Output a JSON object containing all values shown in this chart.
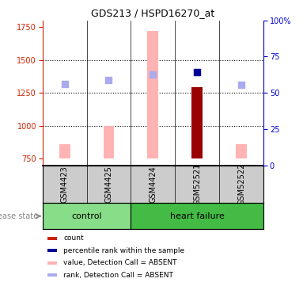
{
  "title": "GDS213 / HSPD16270_at",
  "samples": [
    "GSM4423",
    "GSM4425",
    "GSM4424",
    "GSM52521",
    "GSM52522"
  ],
  "ylim_left": [
    700,
    1800
  ],
  "ylim_right": [
    0,
    100
  ],
  "yticks_left": [
    750,
    1000,
    1250,
    1500,
    1750
  ],
  "ytick_labels_left": [
    "750",
    "1000",
    "1250",
    "1500",
    "1750"
  ],
  "yticks_right": [
    0,
    25,
    50,
    75,
    100
  ],
  "ytick_labels_right": [
    "0",
    "25",
    "50",
    "75",
    "100%"
  ],
  "bar_tops": [
    860,
    1000,
    1720,
    1290,
    860
  ],
  "bar_colors": [
    "#ffb3b3",
    "#ffb3b3",
    "#ffb3b3",
    "#990000",
    "#ffb3b3"
  ],
  "bar_base": 750,
  "bar_width": 0.25,
  "rank_y": [
    1315,
    1345,
    1390,
    1410,
    1310
  ],
  "rank_colors": [
    "#aaaaee",
    "#aaaaee",
    "#aaaaee",
    "#000099",
    "#aaaaee"
  ],
  "rank_size": 28,
  "dotted_lines": [
    1000,
    1250,
    1500
  ],
  "left_color": "#cc2200",
  "right_color": "#0000cc",
  "control_color": "#88dd88",
  "heartfailure_color": "#44bb44",
  "label_bg": "#cccccc",
  "n_control": 2,
  "n_heartfailure": 3,
  "legend_items": [
    {
      "color": "#cc2200",
      "label": "count"
    },
    {
      "color": "#000099",
      "label": "percentile rank within the sample"
    },
    {
      "color": "#ffb3b3",
      "label": "value, Detection Call = ABSENT"
    },
    {
      "color": "#aaaaee",
      "label": "rank, Detection Call = ABSENT"
    }
  ],
  "disease_state_label": "disease state",
  "control_label": "control",
  "heartfailure_label": "heart failure",
  "title_fontsize": 9,
  "tick_fontsize": 7,
  "label_fontsize": 7,
  "group_fontsize": 8,
  "legend_fontsize": 6.5
}
